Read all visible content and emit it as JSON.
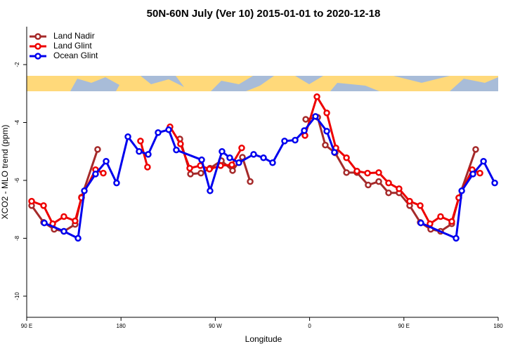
{
  "chart_data": {
    "type": "line",
    "title": "50N-60N July (Ver 10)   2015-01-01 to 2020-12-18",
    "x_label": "Longitude",
    "y_label": "XCO2 - MLO trend (ppm)",
    "xlim": [
      90,
      540
    ],
    "ylim": [
      -10.73,
      -0.69
    ],
    "xticks": [
      {
        "value": 90,
        "label": "90 E"
      },
      {
        "value": 180,
        "label": "180"
      },
      {
        "value": 270,
        "label": "90 W"
      },
      {
        "value": 360,
        "label": "0"
      },
      {
        "value": 450,
        "label": "90 E"
      },
      {
        "value": 540,
        "label": "180"
      }
    ],
    "yticks": [
      -10,
      -8,
      -6,
      -4,
      -2
    ],
    "legend": "top-left",
    "series": [
      {
        "name": "Land Nadir",
        "color": "#a52a2a",
        "x": [
          94.7,
          106.1,
          116.2,
          125.5,
          136.2,
          142.3,
          157.7,
          null,
          236.2,
          246.3,
          256.3,
          265.0,
          275.8,
          286.5,
          295.9,
          303.3,
          null,
          356.3,
          367.7,
          375.0,
          384.4,
          395.2,
          405.2,
          415.9,
          426.0,
          435.4,
          445.4,
          455.5,
          465.6,
          475.6,
          485.0,
          495.7,
          502.4,
          518.5
        ],
        "values": [
          -6.87,
          -7.45,
          -7.69,
          -7.76,
          -7.52,
          -6.58,
          -4.93,
          null,
          -4.57,
          -5.78,
          -5.75,
          -5.58,
          -5.32,
          -5.66,
          -5.2,
          -6.04,
          null,
          -3.89,
          -3.82,
          -4.78,
          -5.05,
          -5.73,
          -5.73,
          -6.16,
          -6.04,
          -6.43,
          -6.43,
          -6.87,
          -7.45,
          -7.69,
          -7.76,
          -7.5,
          -6.6,
          -4.93
        ]
      },
      {
        "name": "Land Glint",
        "color": "#ee0000",
        "x": [
          94.7,
          106.1,
          114.8,
          125.5,
          136.2,
          142.3,
          155.7,
          163.1,
          null,
          198.6,
          205.3,
          null,
          226.8,
          236.8,
          245.6,
          255.7,
          264.4,
          275.1,
          285.8,
          295.2,
          null,
          355.6,
          367.0,
          376.4,
          385.1,
          395.2,
          405.2,
          415.3,
          426.0,
          435.4,
          445.4,
          455.5,
          465.6,
          474.9,
          485.0,
          495.7,
          502.4,
          515.2,
          522.6
        ],
        "values": [
          -6.72,
          -6.87,
          -7.5,
          -7.25,
          -7.4,
          -6.6,
          -5.63,
          -5.75,
          null,
          -4.64,
          -5.54,
          null,
          -4.15,
          -4.74,
          -5.58,
          -5.49,
          -5.61,
          -5.49,
          -5.46,
          -4.88,
          null,
          -4.45,
          -3.11,
          -3.67,
          -4.88,
          -5.22,
          -5.68,
          -5.75,
          -5.73,
          -6.09,
          -6.29,
          -6.72,
          -6.87,
          -7.5,
          -7.25,
          -7.42,
          -6.6,
          -5.63,
          -5.75
        ]
      },
      {
        "name": "Ocean Glint",
        "color": "#0000ee",
        "x": [
          106.8,
          125.5,
          139.0,
          145.0,
          155.7,
          165.8,
          175.8,
          186.6,
          197.3,
          206.0,
          215.4,
          225.5,
          232.8,
          257.0,
          265.0,
          276.4,
          283.8,
          292.5,
          306.6,
          316.0,
          324.7,
          336.1,
          346.2,
          354.9,
          365.6,
          376.4,
          383.7,
          null,
          466.2,
          499.8,
          505.2,
          515.9,
          526.0,
          536.7
        ],
        "values": [
          -7.47,
          -7.76,
          -8.0,
          -6.36,
          -5.78,
          -5.34,
          -6.09,
          -4.49,
          -5.0,
          -5.1,
          -4.35,
          -4.25,
          -4.95,
          -5.29,
          -6.36,
          -5.0,
          -5.22,
          -5.39,
          -5.1,
          -5.22,
          -5.39,
          -4.64,
          -4.61,
          -4.28,
          -3.79,
          -4.3,
          -5.03,
          null,
          -7.47,
          -8.0,
          -6.36,
          -5.78,
          -5.34,
          -6.09
        ]
      }
    ]
  }
}
